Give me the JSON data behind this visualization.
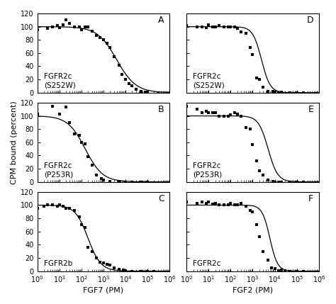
{
  "panels": [
    {
      "label": "A",
      "receptor": "FGFR2c\n(S252W)",
      "ic50": 4000,
      "hill": 1.0,
      "xmin": 1,
      "xmax": 1000000,
      "scatter_x": [
        1,
        3,
        5,
        8,
        10,
        15,
        20,
        30,
        50,
        80,
        100,
        150,
        200,
        300,
        500,
        700,
        1000,
        1500,
        2000,
        3000,
        5000,
        7000,
        10000,
        15000,
        20000,
        30000,
        50000,
        80000,
        100000,
        300000
      ],
      "scatter_y": [
        95,
        97,
        100,
        102,
        98,
        103,
        110,
        105,
        100,
        100,
        95,
        100,
        100,
        93,
        87,
        83,
        80,
        75,
        68,
        55,
        42,
        28,
        20,
        14,
        10,
        5,
        2,
        1,
        0.5,
        0
      ]
    },
    {
      "label": "B",
      "receptor": "FGFR2c\n(P253R)",
      "ic50": 150,
      "hill": 1.1,
      "xmin": 1,
      "xmax": 1000000,
      "scatter_x": [
        1,
        5,
        10,
        20,
        30,
        50,
        80,
        100,
        150,
        200,
        300,
        500,
        800,
        1000,
        2000,
        5000,
        10000,
        20000,
        50000,
        100000
      ],
      "scatter_y": [
        103,
        115,
        103,
        113,
        90,
        73,
        70,
        60,
        58,
        38,
        25,
        10,
        5,
        3,
        1,
        0.5,
        0,
        0,
        0,
        0
      ]
    },
    {
      "label": "C",
      "receptor": "FGFR2b",
      "ic50": 200,
      "hill": 1.5,
      "xmin": 1,
      "xmax": 1000000,
      "scatter_x": [
        1,
        2,
        3,
        5,
        8,
        10,
        15,
        20,
        30,
        50,
        80,
        100,
        150,
        200,
        300,
        500,
        700,
        1000,
        1500,
        2000,
        3000,
        5000,
        8000,
        10000,
        20000,
        50000,
        100000,
        200000
      ],
      "scatter_y": [
        95,
        98,
        100,
        100,
        98,
        100,
        98,
        95,
        95,
        92,
        82,
        70,
        66,
        36,
        30,
        20,
        14,
        12,
        10,
        9,
        5,
        3,
        2,
        1,
        0,
        0,
        0,
        0
      ]
    },
    {
      "label": "D",
      "receptor": "FGFR2c\n(S252W)",
      "ic50": 2500,
      "hill": 2.2,
      "xmin": 1,
      "xmax": 1000000,
      "scatter_x": [
        1,
        3,
        5,
        8,
        10,
        15,
        20,
        30,
        50,
        80,
        100,
        150,
        200,
        300,
        500,
        800,
        1000,
        1500,
        2000,
        3000,
        5000,
        8000,
        10000,
        15000,
        20000,
        50000,
        100000,
        200000
      ],
      "scatter_y": [
        102,
        100,
        100,
        98,
        103,
        100,
        100,
        102,
        100,
        100,
        100,
        100,
        97,
        92,
        90,
        68,
        58,
        22,
        20,
        8,
        2,
        2,
        1,
        0,
        1,
        0,
        0,
        0
      ]
    },
    {
      "label": "E",
      "receptor": "FGFR2c\n(P253R)",
      "ic50": 5000,
      "hill": 2.0,
      "xmin": 1,
      "xmax": 1000000,
      "scatter_x": [
        1,
        3,
        5,
        8,
        10,
        15,
        20,
        30,
        50,
        80,
        100,
        150,
        200,
        300,
        500,
        800,
        1000,
        1500,
        2000,
        3000,
        5000,
        8000,
        10000,
        15000,
        20000,
        50000,
        100000,
        200000
      ],
      "scatter_y": [
        115,
        110,
        105,
        107,
        105,
        105,
        105,
        100,
        100,
        100,
        102,
        105,
        103,
        100,
        82,
        80,
        57,
        32,
        17,
        10,
        3,
        1,
        0,
        0,
        0,
        0,
        0,
        0
      ]
    },
    {
      "label": "F",
      "receptor": "FGFR2c",
      "ic50": 6000,
      "hill": 2.5,
      "xmin": 1,
      "xmax": 1000000,
      "scatter_x": [
        1,
        3,
        5,
        8,
        10,
        15,
        20,
        30,
        50,
        80,
        100,
        150,
        200,
        300,
        500,
        800,
        1000,
        1500,
        2000,
        3000,
        5000,
        7000,
        10000,
        15000,
        20000,
        30000,
        50000,
        100000,
        200000
      ],
      "scatter_y": [
        105,
        103,
        105,
        103,
        105,
        102,
        103,
        100,
        100,
        100,
        103,
        100,
        100,
        103,
        98,
        92,
        90,
        70,
        52,
        30,
        17,
        5,
        4,
        1,
        2,
        0.5,
        0,
        0,
        0
      ]
    }
  ],
  "col_xlabels": [
    "FGF7 (PM)",
    "FGF2 (PM)"
  ],
  "ylabel": "CPM bound (percent)",
  "ylim": [
    0,
    120
  ],
  "yticks": [
    0,
    20,
    40,
    60,
    80,
    100,
    120
  ],
  "fig_width": 4.74,
  "fig_height": 4.29,
  "dpi": 100,
  "bg_color": "#ffffff",
  "marker_color": "#000000",
  "line_color": "#000000",
  "label_fontsize": 9,
  "axis_fontsize": 8,
  "tick_fontsize": 7,
  "receptor_fontsize": 7.5
}
